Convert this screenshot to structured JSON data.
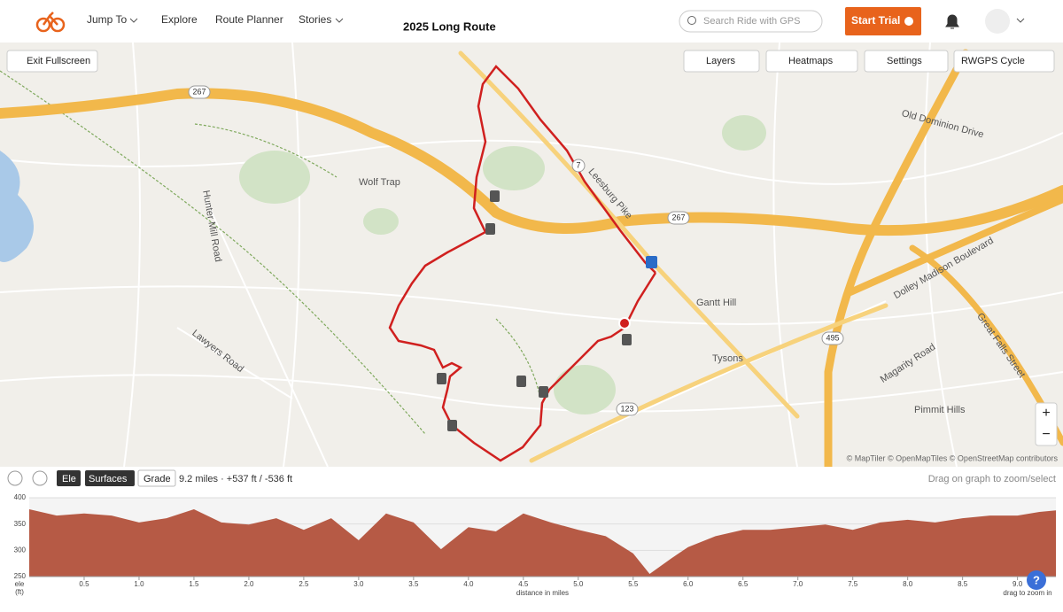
{
  "nav": {
    "jump_to": "Jump To",
    "explore": "Explore",
    "route_planner": "Route Planner",
    "stories": "Stories",
    "route_title": "2025 Long Route",
    "search_placeholder": "Search Ride with GPS",
    "start_trial": "Start Trial"
  },
  "map": {
    "exit_fullscreen": "Exit Fullscreen",
    "layers": "Layers",
    "heatmaps": "Heatmaps",
    "settings": "Settings",
    "map_style": "RWGPS Cycle",
    "labels": [
      "Wolf Trap",
      "Hunter Mill Road",
      "Lawyers Road",
      "Leesburg Pike",
      "Old Dominion Drive",
      "Dolley Madison Boulevard",
      "Great Falls Street",
      "Magarity Road",
      "Gantt Hill",
      "Tysons",
      "Pimmit Hills"
    ],
    "shields": [
      "267",
      "267",
      "7",
      "123",
      "495"
    ],
    "zoom_in": "+",
    "zoom_out": "−",
    "attribution": "© MapTiler © OpenMapTiles © OpenStreetMap contributors"
  },
  "elevation_panel": {
    "ele_button": "Ele",
    "surfaces_button": "Surfaces",
    "grade_button": "Grade",
    "stats": "9.2 miles · +537 ft / -536 ft",
    "hint": "Drag on graph to zoom/select",
    "chart": {
      "type": "area",
      "y_label": "ele",
      "y_unit": "(ft)",
      "x_label": "distance in miles",
      "zoom_hint": "drag to zoom in",
      "help": "?",
      "color": "#b65a45",
      "x": [
        0,
        0.25,
        0.5,
        0.75,
        1.0,
        1.25,
        1.5,
        1.75,
        2.0,
        2.25,
        2.5,
        2.75,
        3.0,
        3.25,
        3.5,
        3.75,
        4.0,
        4.25,
        4.5,
        4.75,
        5.0,
        5.25,
        5.5,
        5.65,
        5.85,
        6.0,
        6.25,
        6.5,
        6.75,
        7.0,
        7.25,
        7.5,
        7.75,
        8.0,
        8.25,
        8.5,
        8.75,
        9.0,
        9.2,
        9.35
      ],
      "values": [
        378,
        366,
        370,
        366,
        353,
        361,
        378,
        353,
        349,
        361,
        339,
        361,
        319,
        370,
        353,
        302,
        344,
        336,
        370,
        353,
        339,
        327,
        294,
        255,
        285,
        306,
        327,
        339,
        339,
        344,
        349,
        339,
        353,
        358,
        353,
        361,
        366,
        366,
        373,
        376
      ],
      "xlim": [
        0,
        9.35
      ],
      "ylim": [
        250,
        400
      ],
      "yticks": [
        250,
        300,
        350,
        400
      ],
      "xticks": [
        {
          "value": 0.5,
          "label": "0.5"
        },
        {
          "value": 1,
          "label": "1.0"
        },
        {
          "value": 1.5,
          "label": "1.5"
        },
        {
          "value": 2,
          "label": "2.0"
        },
        {
          "value": 2.5,
          "label": "2.5"
        },
        {
          "value": 3,
          "label": "3.0"
        },
        {
          "value": 3.5,
          "label": "3.5"
        },
        {
          "value": 4,
          "label": "4.0"
        },
        {
          "value": 4.5,
          "label": "4.5"
        },
        {
          "value": 5,
          "label": "5.0"
        },
        {
          "value": 5.5,
          "label": "5.5"
        },
        {
          "value": 6,
          "label": "6.0"
        },
        {
          "value": 6.5,
          "label": "6.5"
        },
        {
          "value": 7,
          "label": "7.0"
        },
        {
          "value": 7.5,
          "label": "7.5"
        },
        {
          "value": 8,
          "label": "8.0"
        },
        {
          "value": 8.5,
          "label": "8.5"
        },
        {
          "value": 9,
          "label": "9.0"
        }
      ]
    }
  }
}
